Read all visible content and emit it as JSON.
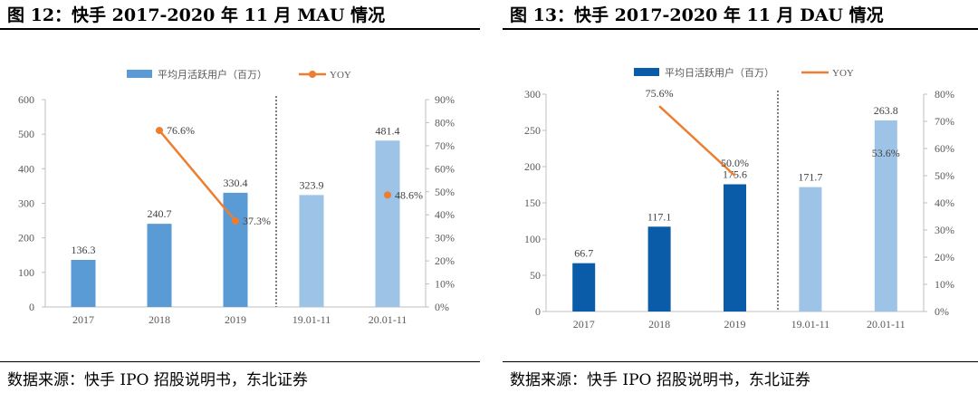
{
  "figures": [
    {
      "title": "图 12：快手 2017-2020 年 11 月 MAU 情况",
      "source": "数据来源：快手 IPO 招股说明书，东北证券"
    },
    {
      "title": "图 13：快手 2017-2020 年 11 月 DAU 情况",
      "source": "数据来源：快手 IPO 招股说明书，东北证券"
    }
  ],
  "chart_data": [
    {
      "type": "bar",
      "categories": [
        "2017",
        "2018",
        "2019",
        "19.01-11",
        "20.01-11"
      ],
      "series": [
        {
          "name": "平均月活跃用户（百万）",
          "type": "bar",
          "values": [
            136.3,
            240.7,
            330.4,
            323.9,
            481.4
          ],
          "labels": [
            "136.3",
            "240.7",
            "330.4",
            "323.9",
            "481.4"
          ],
          "colors": [
            "#5b9bd5",
            "#5b9bd5",
            "#5b9bd5",
            "#9dc3e6",
            "#9dc3e6"
          ]
        },
        {
          "name": "YOY",
          "type": "line",
          "axis": "right",
          "values": [
            null,
            76.6,
            37.3,
            null,
            48.6
          ],
          "labels": [
            "",
            "76.6%",
            "37.3%",
            "",
            "48.6%"
          ],
          "color": "#ed7d31"
        }
      ],
      "yticks": [
        "0",
        "100",
        "200",
        "300",
        "400",
        "500",
        "600"
      ],
      "y2ticks": [
        "0%",
        "10%",
        "20%",
        "30%",
        "40%",
        "50%",
        "60%",
        "70%",
        "80%",
        "90%"
      ],
      "ylim": [
        0,
        600
      ],
      "y2lim": [
        0,
        90
      ],
      "legend": "top",
      "grid": false
    },
    {
      "type": "bar",
      "categories": [
        "2017",
        "2018",
        "2019",
        "19.01-11",
        "20.01-11"
      ],
      "series": [
        {
          "name": "平均日活跃用户（百万）",
          "type": "bar",
          "values": [
            66.7,
            117.1,
            175.6,
            171.7,
            263.8
          ],
          "labels": [
            "66.7",
            "117.1",
            "175.6",
            "171.7",
            "263.8"
          ],
          "colors": [
            "#0a5ca8",
            "#0a5ca8",
            "#0a5ca8",
            "#9dc3e6",
            "#9dc3e6"
          ]
        },
        {
          "name": "YOY",
          "type": "line",
          "axis": "right",
          "values": [
            null,
            75.6,
            50.0,
            null,
            53.6
          ],
          "labels": [
            "",
            "75.6%",
            "50.0%",
            "",
            "53.6%"
          ],
          "color": "#ed7d31"
        }
      ],
      "yticks": [
        "0",
        "50",
        "100",
        "150",
        "200",
        "250",
        "300"
      ],
      "y2ticks": [
        "0%",
        "10%",
        "20%",
        "30%",
        "40%",
        "50%",
        "60%",
        "70%",
        "80%"
      ],
      "ylim": [
        0,
        300
      ],
      "y2lim": [
        0,
        80
      ],
      "legend": "top",
      "grid": false
    }
  ]
}
